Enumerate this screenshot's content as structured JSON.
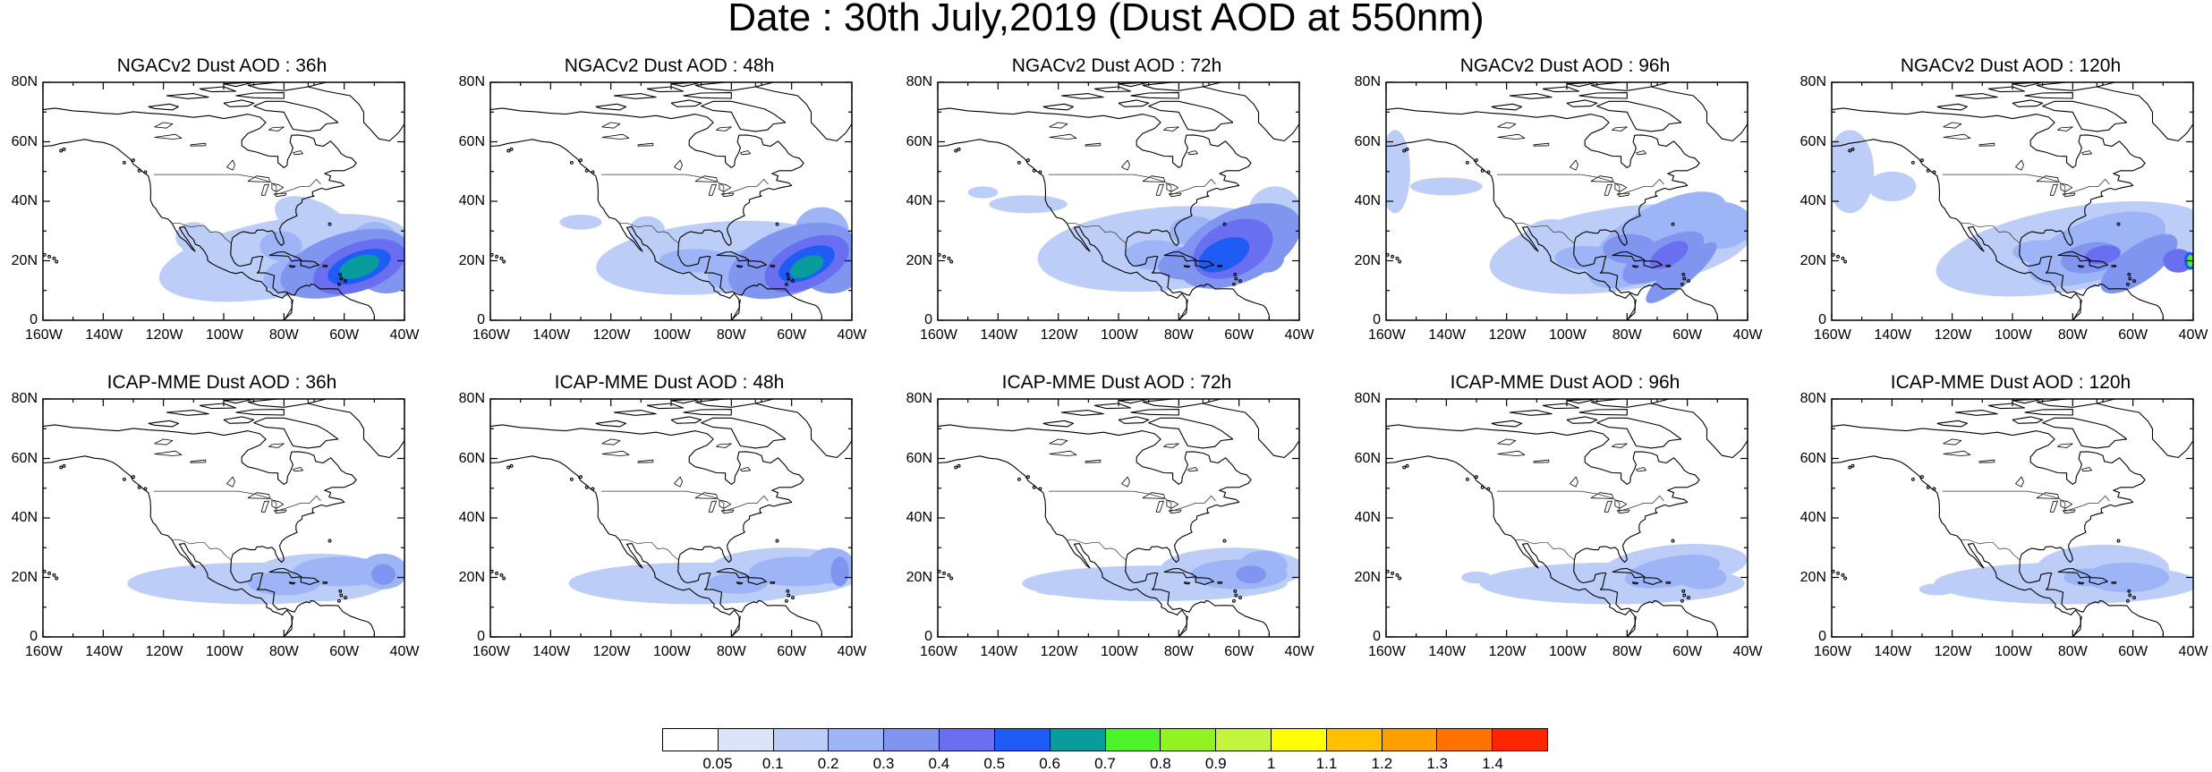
{
  "title": "Date : 30th July,2019 (Dust AOD at 550nm)",
  "panels": [
    {
      "title": "NGACv2 Dust AOD : 36h",
      "model": "NGACv2",
      "lead": "36h"
    },
    {
      "title": "NGACv2 Dust AOD : 48h",
      "model": "NGACv2",
      "lead": "48h"
    },
    {
      "title": "NGACv2 Dust AOD : 72h",
      "model": "NGACv2",
      "lead": "72h"
    },
    {
      "title": "NGACv2 Dust AOD : 96h",
      "model": "NGACv2",
      "lead": "96h"
    },
    {
      "title": "NGACv2 Dust AOD : 120h",
      "model": "NGACv2",
      "lead": "120h"
    },
    {
      "title": "ICAP-MME Dust AOD : 36h",
      "model": "ICAP-MME",
      "lead": "36h"
    },
    {
      "title": "ICAP-MME Dust AOD : 48h",
      "model": "ICAP-MME",
      "lead": "48h"
    },
    {
      "title": "ICAP-MME Dust AOD : 72h",
      "model": "ICAP-MME",
      "lead": "72h"
    },
    {
      "title": "ICAP-MME Dust AOD : 96h",
      "model": "ICAP-MME",
      "lead": "96h"
    },
    {
      "title": "ICAP-MME Dust AOD : 120h",
      "model": "ICAP-MME",
      "lead": "120h"
    }
  ],
  "map_extent": {
    "lon": [
      -160,
      -40
    ],
    "lat": [
      0,
      80
    ]
  },
  "lat_labels": [
    "80N",
    "60N",
    "40N",
    "20N",
    "0"
  ],
  "lon_labels": [
    "160W",
    "140W",
    "120W",
    "100W",
    "80W",
    "60W",
    "40W"
  ],
  "colorbar": {
    "labels": [
      "0.05",
      "0.1",
      "0.2",
      "0.3",
      "0.4",
      "0.5",
      "0.6",
      "0.7",
      "0.8",
      "0.9",
      "1",
      "1.1",
      "1.2",
      "1.3",
      "1.4"
    ],
    "colors": [
      "#ffffff",
      "#dbe4fb",
      "#bccdf8",
      "#9db5f6",
      "#8095f0",
      "#6a6ef0",
      "#1e5cf5",
      "#099c9c",
      "#4ef42a",
      "#92f222",
      "#c4f43e",
      "#ffff00",
      "#ffc000",
      "#ff9f00",
      "#ff7100",
      "#ff2500"
    ]
  }
}
